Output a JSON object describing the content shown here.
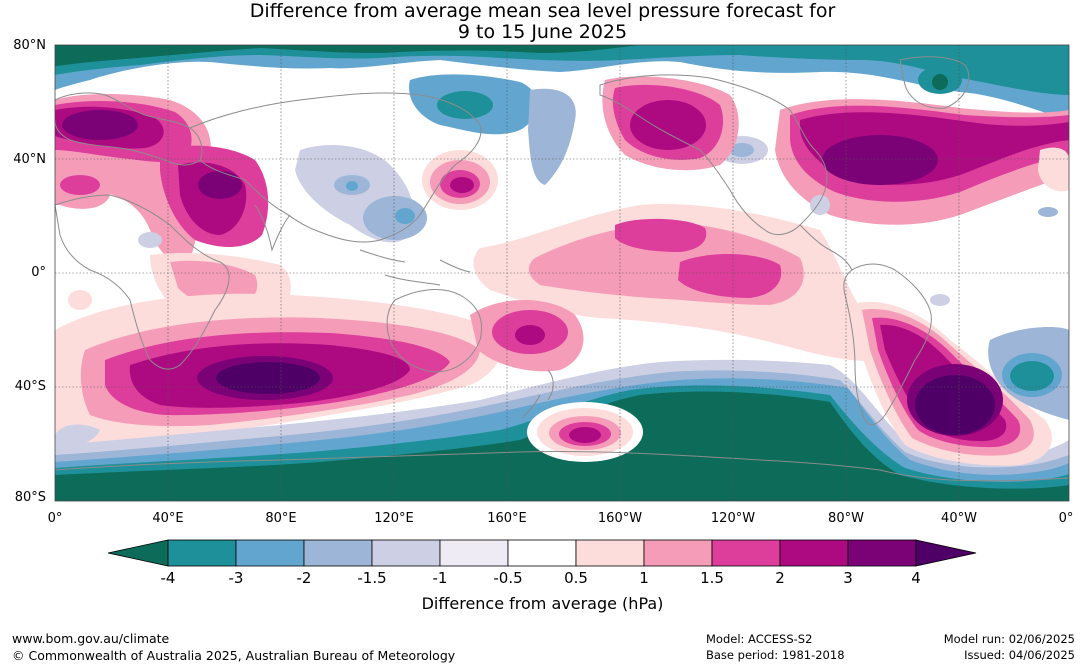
{
  "title_line1": "Difference from average mean sea level pressure forecast for",
  "title_line2": "9 to 15 June 2025",
  "lat_labels": [
    "80°N",
    "40°N",
    "0°",
    "40°S",
    "80°S"
  ],
  "lon_labels": [
    "0°",
    "40°E",
    "80°E",
    "120°E",
    "160°E",
    "160°W",
    "120°W",
    "80°W",
    "40°W",
    "0°"
  ],
  "colorbar": {
    "ticks": [
      "-4",
      "-3",
      "-2",
      "-1.5",
      "-1",
      "-0.5",
      "0.5",
      "1",
      "1.5",
      "2",
      "3",
      "4"
    ],
    "colors": [
      "#0d6b5a",
      "#1e9099",
      "#62a6cf",
      "#9db5d6",
      "#cdd0e5",
      "#efebf4",
      "#ffffff",
      "#fddcdc",
      "#f59db8",
      "#dd3e9b",
      "#ad0a82",
      "#7b0176",
      "#4e0066"
    ],
    "title": "Difference from average (hPa)"
  },
  "footer": {
    "website": "www.bom.gov.au/climate",
    "copyright": "© Commonwealth of Australia 2025, Australian Bureau of Meteorology",
    "model": "Model: ACCESS-S2",
    "base_period": "Base period: 1981-2018",
    "model_run": "Model run: 02/06/2025",
    "issued": "Issued: 04/06/2025"
  }
}
